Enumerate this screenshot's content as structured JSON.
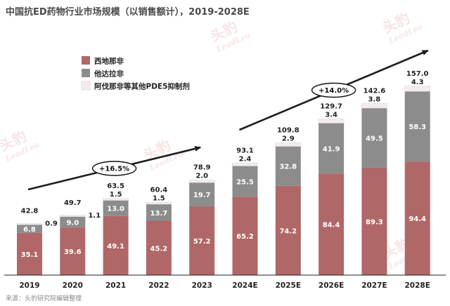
{
  "title": "中国抗ED药物行业市场规模（以销售额计），2019-2028E",
  "source": "来源：头豹研究院编辑整理",
  "watermark": {
    "cn": "头豹",
    "en": "LeadLeo"
  },
  "colors": {
    "sildenafil": "#b06767",
    "tadalafil": "#8c8c8c",
    "others": "#f3ecec",
    "arrow": "#1e1e1e",
    "axis": "#222222"
  },
  "chart_data": {
    "type": "bar",
    "stacked": true,
    "title": "中国抗ED药物行业市场规模（以销售额计），2019-2028E",
    "categories": [
      "2019",
      "2020",
      "2021",
      "2022",
      "2023",
      "2024E",
      "2025E",
      "2026E",
      "2027E",
      "2028E"
    ],
    "series": [
      {
        "name": "西地那非",
        "values": [
          35.1,
          39.6,
          49.1,
          45.2,
          57.2,
          65.2,
          74.2,
          84.4,
          89.3,
          94.4
        ]
      },
      {
        "name": "他达拉非",
        "values": [
          6.8,
          9.0,
          13.0,
          13.7,
          19.7,
          25.5,
          32.8,
          41.9,
          49.5,
          58.3
        ]
      },
      {
        "name": "阿伐那非等其他PDE5抑制剂",
        "values": [
          0.9,
          1.1,
          1.5,
          1.5,
          2.0,
          2.4,
          2.9,
          3.4,
          3.8,
          4.3
        ]
      }
    ],
    "totals": [
      "42.8",
      "49.7",
      "63.5",
      "60.4",
      "78.9",
      "93.1",
      "109.8",
      "129.7",
      "142.6",
      "157.0"
    ],
    "cagr": [
      {
        "label": "+16.5%",
        "from": "2019",
        "to": "2023"
      },
      {
        "label": "+14.0%",
        "from": "2024E",
        "to": "2028E"
      }
    ],
    "ylim": [
      0,
      175
    ],
    "grid": false,
    "legend_position": "top-left"
  }
}
